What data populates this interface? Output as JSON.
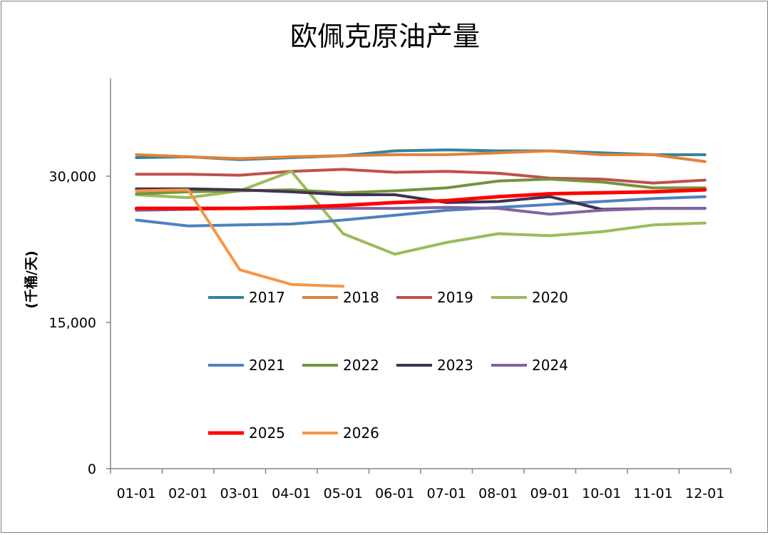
{
  "chart_data": {
    "type": "line",
    "title": "欧佩克原油产量",
    "ylabel": "(千桶/天)",
    "xlabel": "",
    "categories": [
      "01-01",
      "02-01",
      "03-01",
      "04-01",
      "05-01",
      "06-01",
      "07-01",
      "08-01",
      "09-01",
      "10-01",
      "11-01",
      "12-01"
    ],
    "yticks": [
      0,
      15000,
      30000
    ],
    "ytick_labels": [
      "0",
      "15,000",
      "30,000"
    ],
    "ylim": [
      0,
      40000
    ],
    "grid": false,
    "legend_position": "inside-center-left",
    "series": [
      {
        "name": "2017",
        "color": "#31849b",
        "values": [
          31900,
          32000,
          31700,
          31900,
          32100,
          32600,
          32700,
          32600,
          32600,
          32400,
          32200,
          32200
        ]
      },
      {
        "name": "2018",
        "color": "#e0823b",
        "values": [
          32200,
          32000,
          31800,
          32000,
          32100,
          32200,
          32200,
          32400,
          32600,
          32200,
          32200,
          31500
        ]
      },
      {
        "name": "2019",
        "color": "#c0504d",
        "values": [
          30200,
          30200,
          30100,
          30500,
          30700,
          30400,
          30500,
          30300,
          29800,
          29700,
          29300,
          29600
        ]
      },
      {
        "name": "2020",
        "color": "#9bbb59",
        "values": [
          28100,
          27800,
          28500,
          30500,
          24100,
          22000,
          23200,
          24100,
          23900,
          24300,
          25000,
          25200
        ]
      },
      {
        "name": "2021",
        "color": "#4f81bd",
        "values": [
          25500,
          24900,
          25000,
          25100,
          25500,
          26000,
          26500,
          26800,
          27100,
          27400,
          27700,
          27900
        ]
      },
      {
        "name": "2022",
        "color": "#76933c",
        "values": [
          28200,
          28400,
          28500,
          28600,
          28300,
          28500,
          28800,
          29500,
          29700,
          29400,
          28800,
          28800
        ]
      },
      {
        "name": "2023",
        "color": "#403152",
        "values": [
          28700,
          28700,
          28600,
          28400,
          28100,
          28100,
          27300,
          27400,
          27900,
          26600,
          26700,
          26700
        ]
      },
      {
        "name": "2024",
        "color": "#8064a2",
        "values": [
          26500,
          26600,
          26700,
          26700,
          26700,
          26700,
          26800,
          26700,
          26100,
          26500,
          26700,
          26700
        ]
      },
      {
        "name": "2025",
        "color": "#ff0000",
        "values": [
          26700,
          26700,
          26700,
          26800,
          27000,
          27300,
          27500,
          27900,
          28200,
          28300,
          28400,
          28600
        ]
      },
      {
        "name": "2026",
        "color": "#f79646",
        "values": [
          28500,
          28600,
          20400,
          18900,
          18700,
          null,
          null,
          null,
          null,
          null,
          null,
          null
        ]
      }
    ]
  }
}
